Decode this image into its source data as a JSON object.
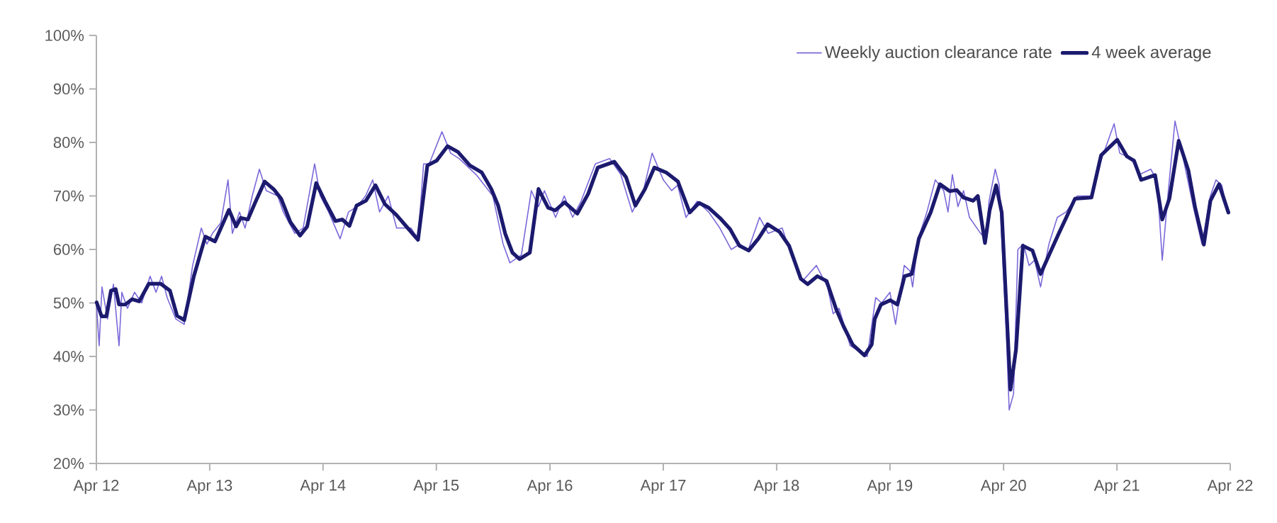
{
  "chart_data": {
    "type": "line",
    "legend": "top right",
    "xlim": [
      "2012-04-01",
      "2022-04-01"
    ],
    "ylim": [
      20,
      100
    ],
    "xticks": [
      {
        "value": "2012-04-01",
        "label": "Apr 12"
      },
      {
        "value": "2013-04-01",
        "label": "Apr 13"
      },
      {
        "value": "2014-04-01",
        "label": "Apr 14"
      },
      {
        "value": "2015-04-01",
        "label": "Apr 15"
      },
      {
        "value": "2016-04-01",
        "label": "Apr 16"
      },
      {
        "value": "2017-04-01",
        "label": "Apr 17"
      },
      {
        "value": "2018-04-01",
        "label": "Apr 18"
      },
      {
        "value": "2019-04-01",
        "label": "Apr 19"
      },
      {
        "value": "2020-04-01",
        "label": "Apr 20"
      },
      {
        "value": "2021-04-01",
        "label": "Apr 21"
      },
      {
        "value": "2022-04-01",
        "label": "Apr 22"
      }
    ],
    "yticks": [
      {
        "value": 20,
        "label": "20%"
      },
      {
        "value": 30,
        "label": "30%"
      },
      {
        "value": 40,
        "label": "40%"
      },
      {
        "value": 50,
        "label": "50%"
      },
      {
        "value": 60,
        "label": "60%"
      },
      {
        "value": 70,
        "label": "70%"
      },
      {
        "value": 80,
        "label": "80%"
      },
      {
        "value": 90,
        "label": "90%"
      },
      {
        "value": 100,
        "label": "100%"
      }
    ],
    "series": [
      {
        "name": "Weekly auction clearance rate",
        "color": "#7b68d9",
        "x": [
          "2012-04-01",
          "2012-04-10",
          "2012-04-19",
          "2012-05-07",
          "2012-05-26",
          "2012-06-13",
          "2012-06-22",
          "2012-07-10",
          "2012-08-02",
          "2012-08-25",
          "2012-09-21",
          "2012-10-10",
          "2012-10-28",
          "2012-11-15",
          "2012-12-13",
          "2013-01-09",
          "2013-02-05",
          "2013-03-05",
          "2013-03-23",
          "2013-04-10",
          "2013-05-07",
          "2013-05-30",
          "2013-06-13",
          "2013-07-06",
          "2013-07-24",
          "2013-08-16",
          "2013-09-08",
          "2013-09-30",
          "2013-11-06",
          "2013-11-24",
          "2013-12-31",
          "2014-01-27",
          "2014-03-05",
          "2014-03-23",
          "2014-04-19",
          "2014-05-26",
          "2014-06-22",
          "2014-07-19",
          "2014-08-16",
          "2014-09-08",
          "2014-09-30",
          "2014-10-28",
          "2014-11-24",
          "2015-01-09",
          "2015-02-01",
          "2015-02-19",
          "2015-03-09",
          "2015-04-19",
          "2015-05-17",
          "2015-06-13",
          "2015-08-07",
          "2015-09-30",
          "2015-11-02",
          "2015-11-24",
          "2015-12-31",
          "2016-02-01",
          "2016-02-24",
          "2016-03-14",
          "2016-04-19",
          "2016-05-17",
          "2016-06-13",
          "2016-07-10",
          "2016-08-25",
          "2016-10-10",
          "2016-11-15",
          "2016-12-22",
          "2017-01-27",
          "2017-02-24",
          "2017-04-01",
          "2017-04-28",
          "2017-05-17",
          "2017-06-13",
          "2017-07-19",
          "2017-08-25",
          "2017-09-30",
          "2017-11-06",
          "2017-12-03",
          "2017-12-31",
          "2018-02-05",
          "2018-03-05",
          "2018-04-19",
          "2018-05-17",
          "2018-06-22",
          "2018-08-07",
          "2018-09-12",
          "2018-09-30",
          "2018-10-19",
          "2018-11-24",
          "2018-12-22",
          "2019-01-18",
          "2019-02-14",
          "2019-03-05",
          "2019-04-01",
          "2019-04-19",
          "2019-05-17",
          "2019-06-04",
          "2019-06-13",
          "2019-07-01",
          "2019-07-29",
          "2019-08-25",
          "2019-09-21",
          "2019-10-05",
          "2019-10-19",
          "2019-11-06",
          "2019-11-24",
          "2019-12-13",
          "2020-01-18",
          "2020-02-05",
          "2020-02-14",
          "2020-03-05",
          "2020-03-18",
          "2020-04-10",
          "2020-04-19",
          "2020-05-03",
          "2020-05-17",
          "2020-06-04",
          "2020-06-22",
          "2020-07-10",
          "2020-07-29",
          "2020-08-25",
          "2020-09-21",
          "2020-10-19",
          "2020-11-24",
          "2021-01-09",
          "2021-02-05",
          "2021-03-23",
          "2021-04-10",
          "2021-05-17",
          "2021-06-13",
          "2021-07-19",
          "2021-08-07",
          "2021-08-16",
          "2021-08-25",
          "2021-09-12",
          "2021-10-05",
          "2021-10-28",
          "2021-12-03",
          "2021-12-31",
          "2022-01-27",
          "2022-02-14",
          "2022-03-05",
          "2022-03-23"
        ],
        "values": [
          50,
          42,
          53,
          47,
          53.5,
          42,
          52,
          49,
          52,
          50,
          55,
          52,
          55,
          51,
          47,
          46,
          57,
          64,
          61,
          63,
          65,
          73,
          63,
          67,
          64,
          70,
          75,
          71,
          70,
          67,
          63,
          64,
          76,
          70,
          67,
          62,
          67,
          68,
          70,
          73,
          67,
          70,
          64,
          64,
          62,
          76,
          76,
          82,
          78,
          77,
          74,
          70,
          61,
          57.5,
          59,
          71,
          68,
          71,
          66,
          70,
          66,
          69,
          76,
          77,
          74,
          67,
          71,
          78,
          73,
          71,
          72,
          66,
          69,
          67,
          64,
          60,
          61,
          60,
          66,
          63,
          64,
          59,
          54,
          57,
          53,
          48,
          49,
          42,
          41,
          40,
          51,
          50,
          52,
          46,
          57,
          56,
          53,
          62,
          67,
          73,
          71,
          67,
          74,
          68,
          71,
          66,
          63,
          62,
          69,
          75,
          72,
          44,
          30,
          33,
          60,
          61,
          57,
          58,
          53,
          61,
          66,
          67,
          70,
          70,
          76,
          83.5,
          78,
          77,
          74,
          75,
          73,
          66,
          58,
          70,
          84,
          78,
          68,
          61,
          70,
          73,
          72,
          67
        ]
      },
      {
        "name": "4 week average",
        "color": "#1c1a6e",
        "x": [
          "2012-04-02",
          "2012-04-18",
          "2012-05-03",
          "2012-05-18",
          "2012-06-02",
          "2012-06-13",
          "2012-07-03",
          "2012-07-25",
          "2012-08-17",
          "2012-09-17",
          "2012-10-25",
          "2012-11-24",
          "2012-12-17",
          "2013-01-09",
          "2013-02-09",
          "2013-03-18",
          "2013-04-18",
          "2013-06-02",
          "2013-06-25",
          "2013-07-10",
          "2013-08-02",
          "2013-08-25",
          "2013-09-25",
          "2013-10-25",
          "2013-11-17",
          "2013-12-17",
          "2014-01-17",
          "2014-02-09",
          "2014-03-10",
          "2014-04-10",
          "2014-05-11",
          "2014-06-02",
          "2014-06-25",
          "2014-07-18",
          "2014-08-17",
          "2014-09-17",
          "2014-10-17",
          "2014-11-24",
          "2014-12-25",
          "2015-02-01",
          "2015-03-03",
          "2015-04-02",
          "2015-05-07",
          "2015-06-10",
          "2015-07-18",
          "2015-08-25",
          "2015-09-25",
          "2015-10-17",
          "2015-11-09",
          "2015-12-02",
          "2015-12-25",
          "2016-01-27",
          "2016-02-24",
          "2016-03-26",
          "2016-04-18",
          "2016-05-18",
          "2016-06-28",
          "2016-08-02",
          "2016-09-02",
          "2016-10-25",
          "2016-12-02",
          "2017-01-01",
          "2017-02-01",
          "2017-03-03",
          "2017-04-10",
          "2017-05-18",
          "2017-06-25",
          "2017-07-25",
          "2017-08-25",
          "2017-10-02",
          "2017-11-02",
          "2017-12-02",
          "2018-01-01",
          "2018-02-01",
          "2018-03-03",
          "2018-04-10",
          "2018-05-11",
          "2018-06-18",
          "2018-07-10",
          "2018-08-10",
          "2018-09-09",
          "2018-10-10",
          "2018-11-02",
          "2018-12-02",
          "2019-01-09",
          "2019-02-01",
          "2019-02-11",
          "2019-03-03",
          "2019-04-02",
          "2019-04-25",
          "2019-05-18",
          "2019-06-10",
          "2019-07-03",
          "2019-08-10",
          "2019-09-09",
          "2019-10-10",
          "2019-11-02",
          "2019-11-24",
          "2019-12-25",
          "2020-01-09",
          "2020-02-01",
          "2020-02-16",
          "2020-03-08",
          "2020-03-26",
          "2020-04-23",
          "2020-05-11",
          "2020-06-02",
          "2020-07-03",
          "2020-07-29",
          "2020-08-25",
          "2020-09-25",
          "2020-10-17",
          "2020-11-17",
          "2021-01-09",
          "2021-02-09",
          "2021-04-02",
          "2021-05-03",
          "2021-05-26",
          "2021-06-18",
          "2021-08-02",
          "2021-08-25",
          "2021-09-17",
          "2021-10-17",
          "2021-11-17",
          "2021-12-09",
          "2022-01-06",
          "2022-01-27",
          "2022-02-24",
          "2022-03-26"
        ],
        "values": [
          50.1,
          47.5,
          47.5,
          52.3,
          52.6,
          49.7,
          49.7,
          50.7,
          50.3,
          53.6,
          53.6,
          52.3,
          47.6,
          46.8,
          55.0,
          62.4,
          61.5,
          67.4,
          64.3,
          65.9,
          65.6,
          68.7,
          72.7,
          71.2,
          69.5,
          65.1,
          62.6,
          64.3,
          72.4,
          68.7,
          65.3,
          65.6,
          64.4,
          68.2,
          69.1,
          72.0,
          68.5,
          66.4,
          64.3,
          61.8,
          75.7,
          76.6,
          79.3,
          78.2,
          75.7,
          74.4,
          71.3,
          68.2,
          62.9,
          59.4,
          58.2,
          59.4,
          71.3,
          67.8,
          67.3,
          68.8,
          66.7,
          70.4,
          75.3,
          76.4,
          73.5,
          68.2,
          71.3,
          75.3,
          74.4,
          72.7,
          66.9,
          68.7,
          67.8,
          65.8,
          63.8,
          60.7,
          59.8,
          62.0,
          64.7,
          63.3,
          60.7,
          54.5,
          53.5,
          55.0,
          54.1,
          48.8,
          45.7,
          42.2,
          40.2,
          42.2,
          47.0,
          49.7,
          50.5,
          49.7,
          55.0,
          55.4,
          62.0,
          66.9,
          72.2,
          70.9,
          71.1,
          69.7,
          69.1,
          70.0,
          61.2,
          67.3,
          72.0,
          66.9,
          33.8,
          41.3,
          60.7,
          59.8,
          55.4,
          58.9,
          62.9,
          65.6,
          69.5,
          69.7,
          77.6,
          80.5,
          77.4,
          76.6,
          73.0,
          73.9,
          65.6,
          69.5,
          80.3,
          74.8,
          67.8,
          60.9,
          69.1,
          72.2,
          66.9
        ]
      }
    ]
  }
}
